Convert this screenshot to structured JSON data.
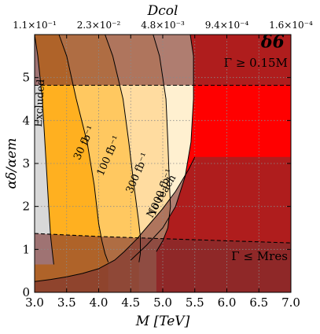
{
  "chart_data": {
    "type": "contour",
    "panel_label": "δ6",
    "xlabel": "M [TeV]",
    "ylabel": "αδ/αem",
    "top_axis_label": "Dcol",
    "xlim": [
      3.0,
      7.0
    ],
    "ylim": [
      0,
      6
    ],
    "grid": true,
    "x_ticks": [
      "3.0",
      "3.5",
      "4.0",
      "4.5",
      "5.0",
      "5.5",
      "6.0",
      "6.5",
      "7.0"
    ],
    "y_ticks": [
      "0",
      "1",
      "2",
      "3",
      "4",
      "5"
    ],
    "top_ticks": [
      {
        "x": 3.0,
        "label": "1.1×10⁻¹"
      },
      {
        "x": 4.0,
        "label": "2.3×10⁻²"
      },
      {
        "x": 5.0,
        "label": "4.8×10⁻³"
      },
      {
        "x": 6.0,
        "label": "9.4×10⁻⁴"
      },
      {
        "x": 7.0,
        "label": "1.6×10⁻⁴"
      }
    ],
    "colors": {
      "excluded": "#d8d8d8",
      "reach_30": "#ffb020",
      "reach_100": "#ffc860",
      "reach_300": "#ffdca0",
      "reach_1000": "#fff0d0",
      "no_reach": "#ff0000",
      "shade": "#7a3030"
    },
    "regions": [
      {
        "name": "excluded",
        "label": "Excluded",
        "boundary": [
          [
            3.0,
            6.0
          ],
          [
            3.05,
            5.5
          ],
          [
            3.12,
            4.5
          ],
          [
            3.18,
            3.0
          ],
          [
            3.22,
            2.0
          ],
          [
            3.25,
            1.3
          ],
          [
            3.28,
            0.9
          ],
          [
            3.3,
            0.65
          ],
          [
            3.0,
            0.65
          ]
        ]
      },
      {
        "name": "reach_30",
        "label": "30 fb⁻¹",
        "boundary": [
          [
            3.38,
            6.0
          ],
          [
            3.5,
            5.5
          ],
          [
            3.65,
            4.5
          ],
          [
            3.82,
            3.5
          ],
          [
            3.93,
            2.5
          ],
          [
            4.0,
            1.6
          ],
          [
            4.05,
            1.2
          ],
          [
            4.1,
            0.9
          ],
          [
            4.15,
            0.7
          ]
        ]
      },
      {
        "name": "reach_100",
        "label": "100 fb⁻¹",
        "boundary": [
          [
            4.1,
            6.0
          ],
          [
            4.22,
            5.5
          ],
          [
            4.38,
            4.5
          ],
          [
            4.47,
            3.5
          ],
          [
            4.55,
            2.5
          ],
          [
            4.62,
            1.7
          ],
          [
            4.65,
            1.3
          ],
          [
            4.65,
            0.9
          ],
          [
            4.63,
            0.7
          ]
        ]
      },
      {
        "name": "reach_300",
        "label": "300 fb⁻¹",
        "boundary": [
          [
            4.85,
            6.0
          ],
          [
            4.95,
            5.5
          ],
          [
            5.05,
            4.5
          ],
          [
            5.08,
            3.5
          ],
          [
            5.1,
            2.7
          ],
          [
            5.12,
            2.0
          ],
          [
            5.08,
            1.5
          ],
          [
            5.0,
            1.2
          ],
          [
            4.9,
            0.95
          ]
        ]
      },
      {
        "name": "reach_1000",
        "label": "1000 fb⁻¹",
        "boundary": [
          [
            5.43,
            6.0
          ],
          [
            5.48,
            5.5
          ],
          [
            5.48,
            4.5
          ],
          [
            5.44,
            3.5
          ],
          [
            5.35,
            2.7
          ],
          [
            5.2,
            2.0
          ],
          [
            5.0,
            1.5
          ],
          [
            4.75,
            1.1
          ],
          [
            4.5,
            0.75
          ]
        ]
      },
      {
        "name": "no_reach",
        "label": "No reach"
      }
    ],
    "dashed_lines": [
      {
        "label": "Γ ≥ 0.15M",
        "points": [
          [
            3.0,
            4.82
          ],
          [
            7.0,
            4.82
          ]
        ]
      },
      {
        "label": "Γ ≤ Mres",
        "points": [
          [
            3.0,
            1.37
          ],
          [
            4.0,
            1.3
          ],
          [
            5.0,
            1.25
          ],
          [
            6.0,
            1.2
          ],
          [
            7.0,
            1.15
          ]
        ]
      }
    ],
    "lower_shade_edge": [
      [
        3.0,
        0.25
      ],
      [
        3.25,
        0.3
      ],
      [
        3.5,
        0.36
      ],
      [
        3.75,
        0.44
      ],
      [
        4.0,
        0.55
      ],
      [
        4.25,
        0.75
      ],
      [
        4.4,
        0.95
      ],
      [
        4.6,
        1.25
      ],
      [
        4.8,
        1.6
      ],
      [
        5.0,
        1.95
      ],
      [
        5.2,
        2.35
      ],
      [
        5.4,
        2.85
      ],
      [
        5.5,
        3.15
      ]
    ],
    "contour_label_positions": [
      {
        "text": "30 fb⁻¹",
        "x": 3.82,
        "y": 3.45,
        "angle": -65
      },
      {
        "text": "100 fb⁻¹",
        "x": 4.2,
        "y": 3.15,
        "angle": -66
      },
      {
        "text": "300 fb⁻¹",
        "x": 4.65,
        "y": 2.75,
        "angle": -67
      },
      {
        "text": "1000 fb⁻¹",
        "x": 5.02,
        "y": 2.3,
        "angle": -68
      }
    ],
    "annotation_positions": {
      "excluded": {
        "x": 3.13,
        "y": 4.4,
        "angle": -87
      },
      "no_reach": {
        "x": 5.02,
        "y": 2.2,
        "angle": -60
      },
      "upper": {
        "x": 6.95,
        "y": 5.25
      },
      "lower": {
        "x": 6.95,
        "y": 0.75
      },
      "panel": {
        "x": 6.9,
        "y": 5.7
      }
    }
  }
}
